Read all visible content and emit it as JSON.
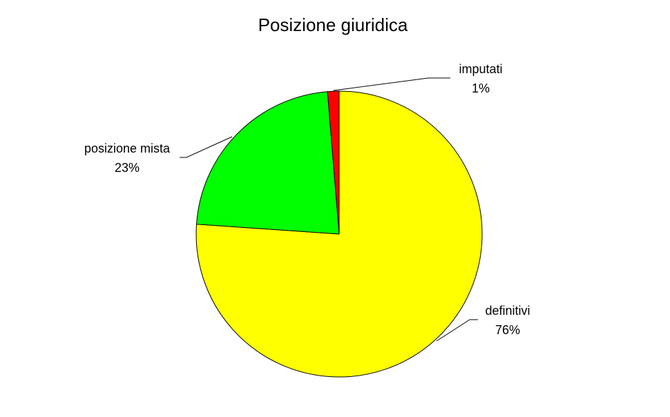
{
  "chart_data": {
    "type": "pie",
    "title": "Posizione giuridica",
    "start_angle": "12 o'clock",
    "direction": "clockwise",
    "slices": [
      {
        "label": "definitivi",
        "value": 76.1,
        "percent_label": "76%",
        "color": "#ffff00"
      },
      {
        "label": "posizione mista",
        "value": 22.6,
        "percent_label": "23%",
        "color": "#00ff00"
      },
      {
        "label": "imputati",
        "value": 1.3,
        "percent_label": "1%",
        "color": "#ff0000"
      }
    ],
    "legend": "none",
    "data_labels": "outside with leader lines"
  }
}
